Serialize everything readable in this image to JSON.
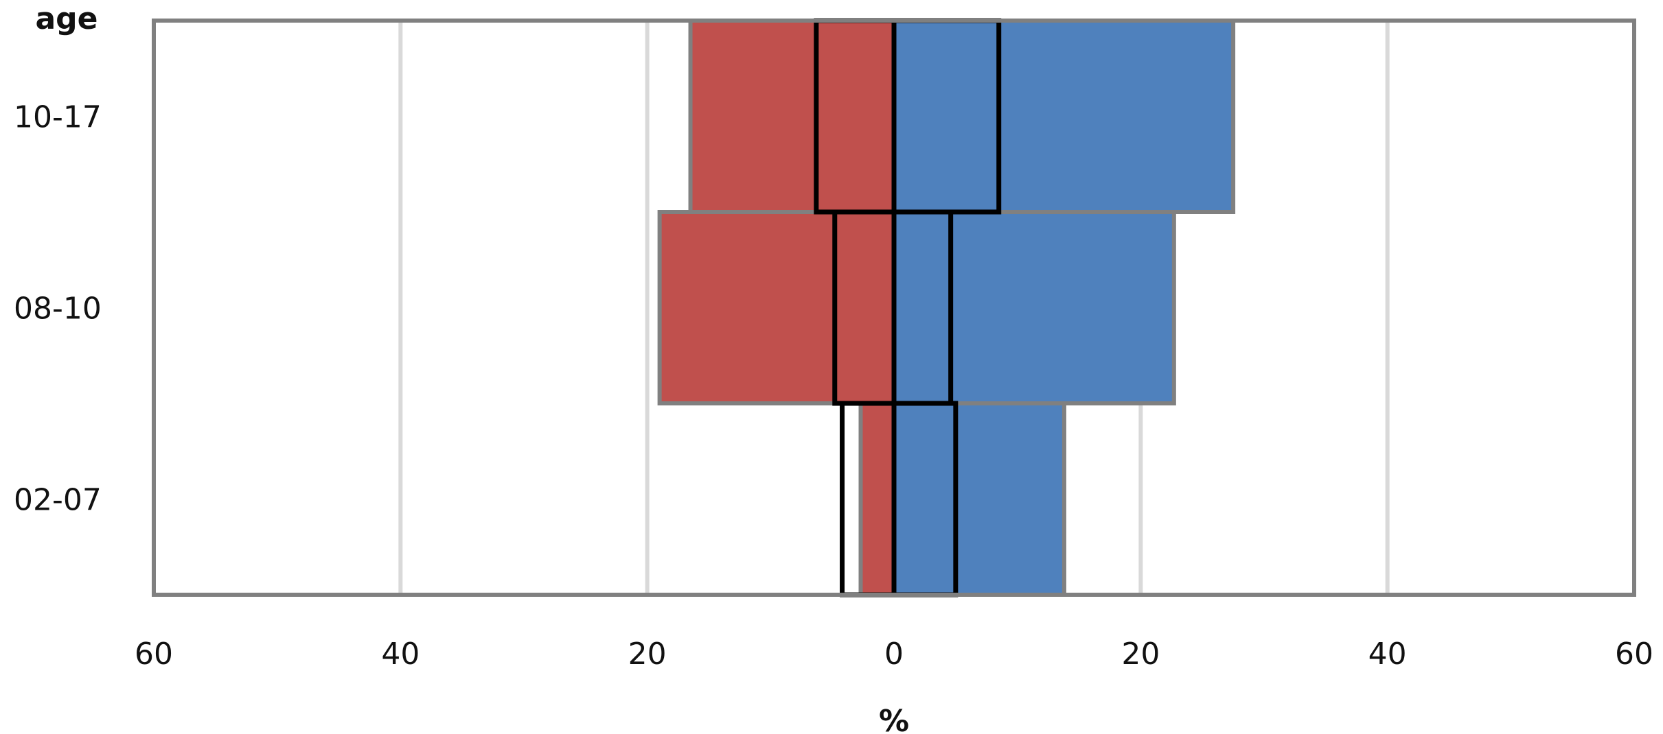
{
  "chart_data": {
    "type": "bar",
    "orientation": "horizontal",
    "layout": "population-pyramid",
    "y_title": "age",
    "x_title": "%",
    "categories": [
      "10-17",
      "08-10",
      "02-07"
    ],
    "x_ticks": [
      -60,
      -40,
      -20,
      0,
      20,
      40,
      60
    ],
    "x_tick_labels": [
      "60",
      "40",
      "20",
      "0",
      "20",
      "40",
      "60"
    ],
    "xlim": [
      -60,
      60
    ],
    "grid": true,
    "legend": "none",
    "series": [
      {
        "side": "left",
        "style": "filled",
        "color": "#c0504d",
        "values": [
          16.5,
          19,
          2.7
        ]
      },
      {
        "side": "right",
        "style": "filled",
        "color": "#4f81bd",
        "values": [
          27.5,
          22.7,
          13.8
        ]
      },
      {
        "side": "left",
        "style": "outline",
        "color": "#000000",
        "values": [
          6.3,
          4.8,
          4.2
        ]
      },
      {
        "side": "right",
        "style": "outline",
        "color": "#000000",
        "values": [
          8.5,
          4.6,
          5
        ]
      }
    ]
  }
}
